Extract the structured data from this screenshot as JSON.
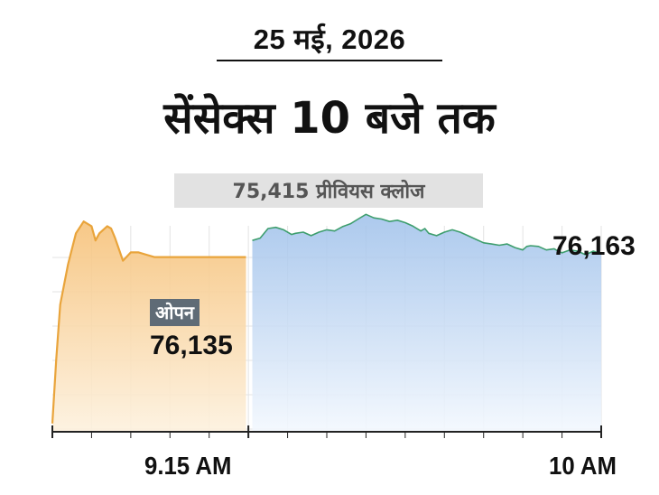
{
  "header": {
    "date": "25 मई, 2026",
    "title": "सेंसेक्स 10 बजे तक",
    "previous_close_label": "75,415 प्रीवियस क्लोज"
  },
  "annotations": {
    "open_badge": "ओपन",
    "open_value": "76,135",
    "close_value": "76,163"
  },
  "colors": {
    "pre_open_line": "#e9a43b",
    "pre_open_fill": "#f6c27a",
    "session_line": "#3e9e6e",
    "session_fill": "#9ec0ea",
    "grid": "#e3e3e3",
    "badge_bg": "#5f6b76"
  },
  "chart_data": {
    "type": "area",
    "title": "सेंसेक्स 10 बजे तक",
    "xlabel": "",
    "ylabel": "",
    "x_tick_labels": [
      "9.15 AM",
      "10 AM"
    ],
    "x_range_minutes": [
      -25,
      45
    ],
    "y_range": [
      75415,
      76350
    ],
    "grid": true,
    "series": [
      {
        "segment": "pre-open",
        "points": [
          [
            -25,
            75450
          ],
          [
            -24.5,
            75720
          ],
          [
            -24,
            75950
          ],
          [
            -23,
            76120
          ],
          [
            -22,
            76250
          ],
          [
            -21,
            76300
          ],
          [
            -20,
            76280
          ],
          [
            -19.5,
            76220
          ],
          [
            -19,
            76250
          ],
          [
            -18,
            76280
          ],
          [
            -17.5,
            76270
          ],
          [
            -17,
            76230
          ],
          [
            -16,
            76135
          ],
          [
            -15,
            76170
          ],
          [
            -14,
            76170
          ],
          [
            -13,
            76160
          ],
          [
            -12,
            76150
          ],
          [
            -9,
            76150
          ],
          [
            -6,
            76150
          ],
          [
            -3,
            76150
          ],
          [
            -0.3,
            76150
          ]
        ]
      },
      {
        "segment": "session",
        "points": [
          [
            0.5,
            76220
          ],
          [
            1.5,
            76230
          ],
          [
            2.5,
            76270
          ],
          [
            3.5,
            76275
          ],
          [
            4.5,
            76265
          ],
          [
            5.5,
            76245
          ],
          [
            6,
            76250
          ],
          [
            7,
            76255
          ],
          [
            8,
            76240
          ],
          [
            9,
            76255
          ],
          [
            10,
            76265
          ],
          [
            11,
            76260
          ],
          [
            12,
            76278
          ],
          [
            13,
            76290
          ],
          [
            14,
            76310
          ],
          [
            15,
            76330
          ],
          [
            16,
            76315
          ],
          [
            17,
            76310
          ],
          [
            18,
            76300
          ],
          [
            19,
            76305
          ],
          [
            20,
            76295
          ],
          [
            21,
            76280
          ],
          [
            22,
            76260
          ],
          [
            22.5,
            76270
          ],
          [
            23,
            76250
          ],
          [
            24,
            76240
          ],
          [
            25,
            76255
          ],
          [
            26,
            76265
          ],
          [
            27,
            76255
          ],
          [
            28,
            76240
          ],
          [
            29,
            76225
          ],
          [
            30,
            76210
          ],
          [
            31,
            76205
          ],
          [
            32,
            76200
          ],
          [
            33,
            76205
          ],
          [
            34,
            76190
          ],
          [
            35,
            76180
          ],
          [
            35.5,
            76195
          ],
          [
            36,
            76198
          ],
          [
            37,
            76195
          ],
          [
            38,
            76180
          ],
          [
            39,
            76185
          ],
          [
            39.5,
            76175
          ],
          [
            40,
            76168
          ],
          [
            41,
            76180
          ],
          [
            42,
            76175
          ],
          [
            43,
            76160
          ],
          [
            44,
            76175
          ],
          [
            45,
            76163
          ]
        ]
      }
    ]
  }
}
